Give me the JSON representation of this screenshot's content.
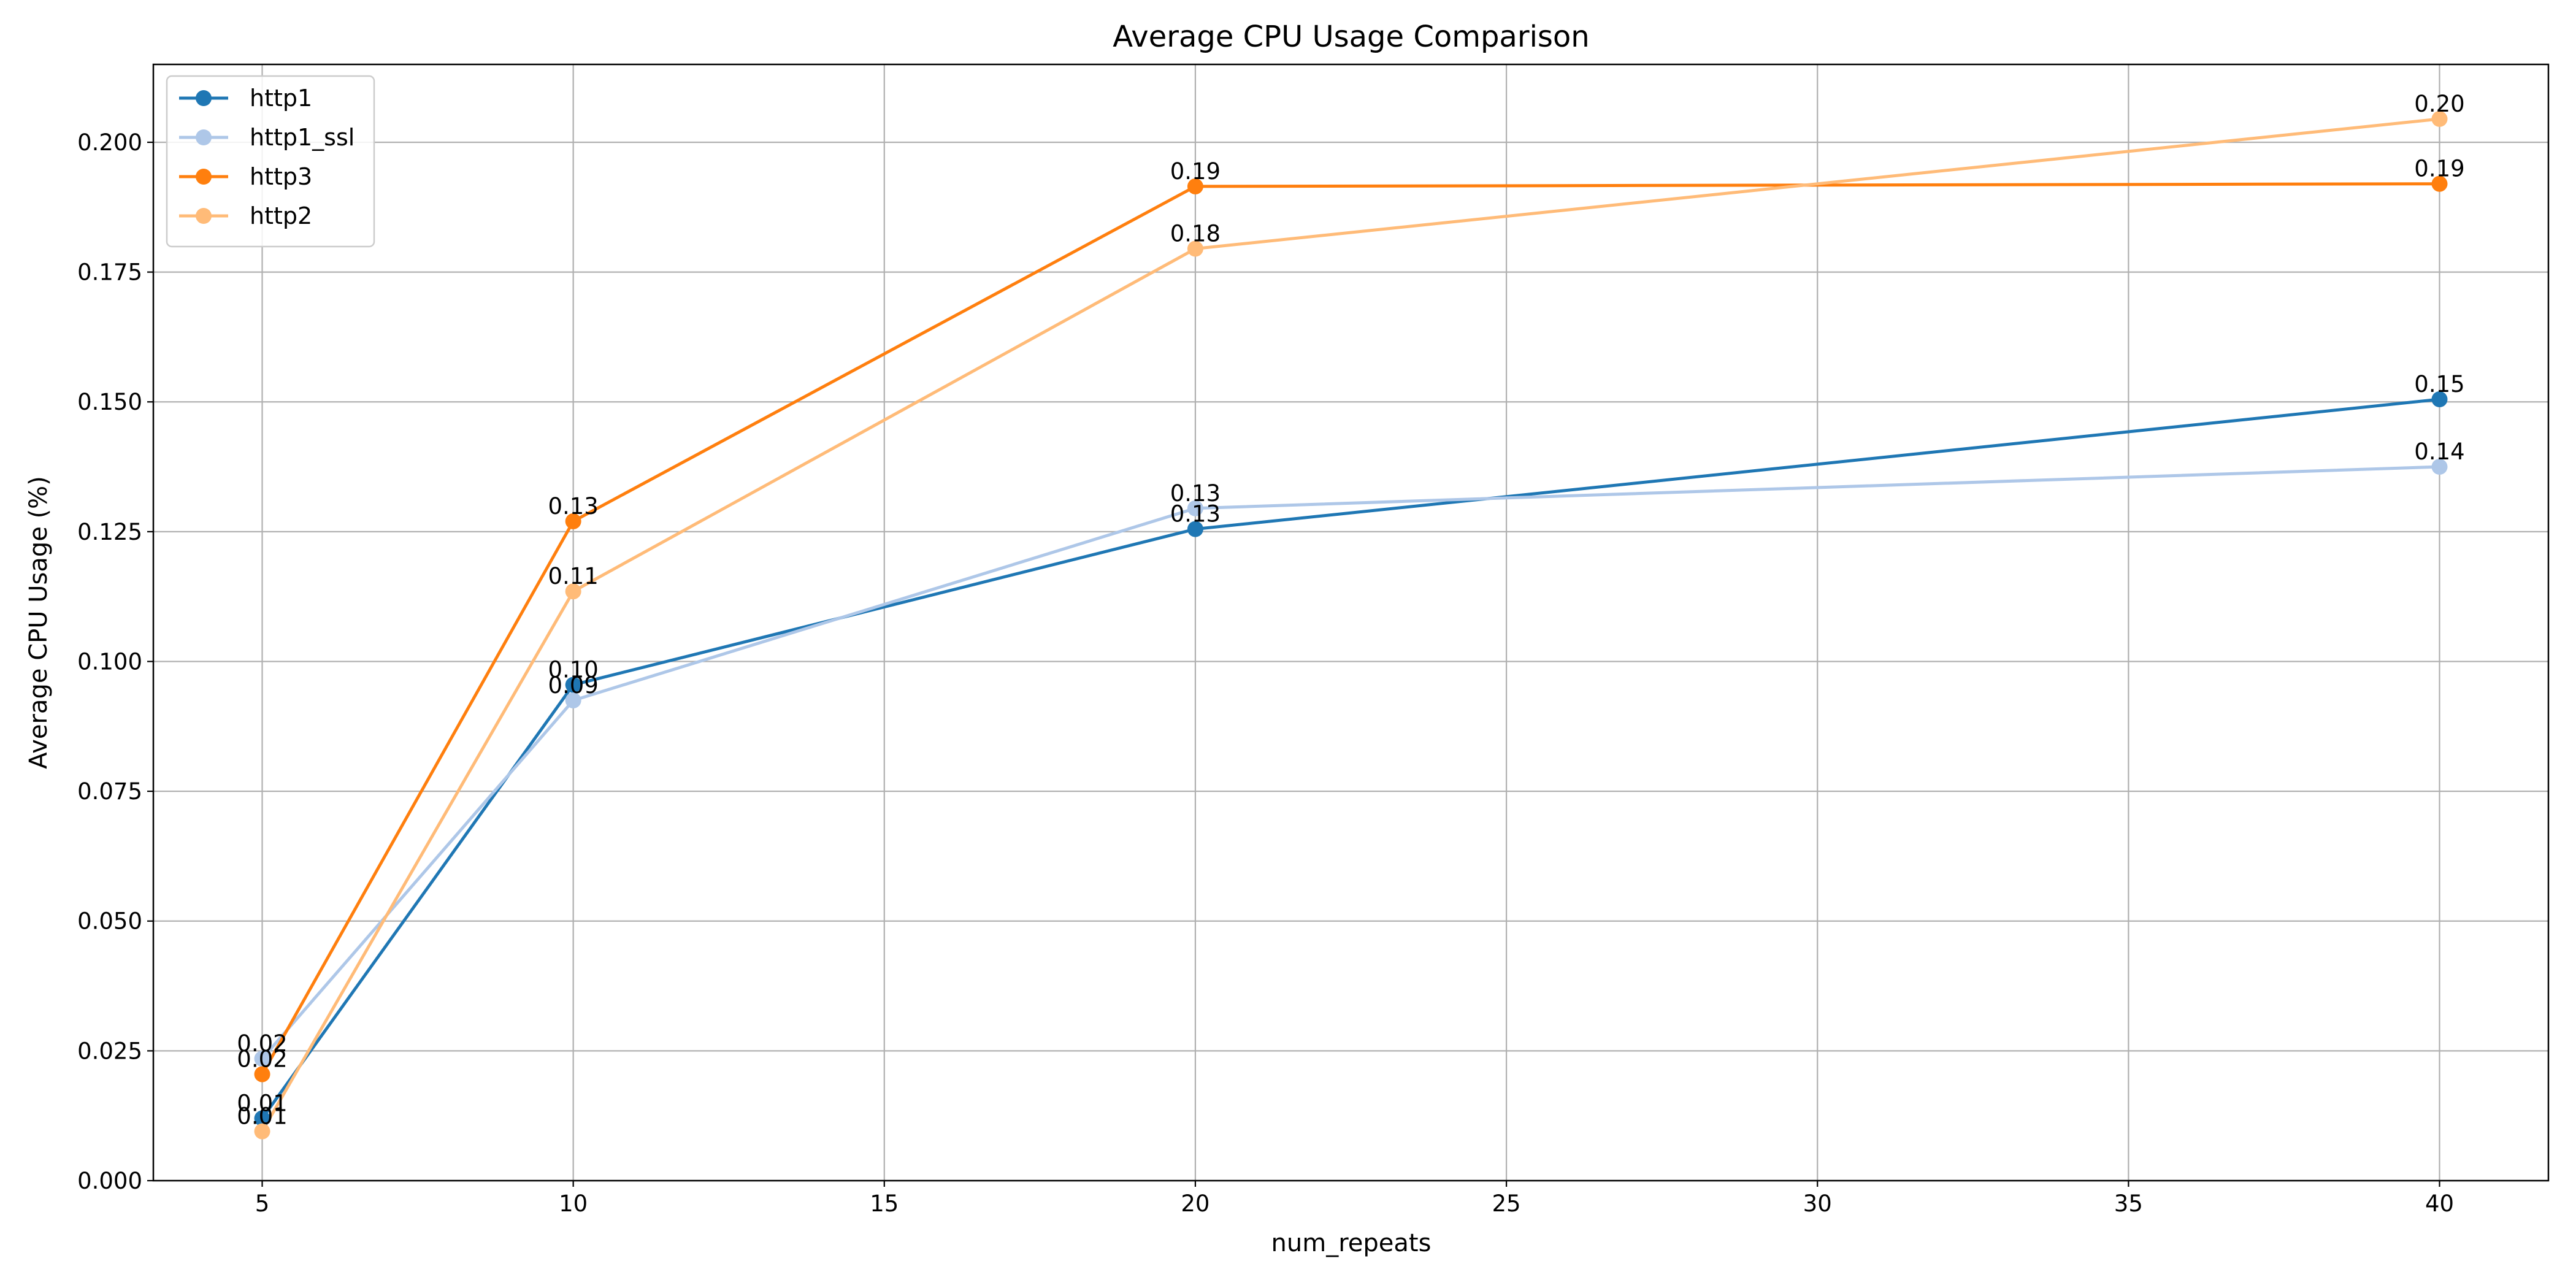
{
  "chart_data": {
    "type": "line",
    "title": "Average CPU Usage Comparison",
    "xlabel": "num_repeats",
    "ylabel": "Average CPU Usage (%)",
    "x": [
      5,
      10,
      20,
      40
    ],
    "xlim": [
      3.25,
      41.75
    ],
    "ylim": [
      0.0,
      0.215
    ],
    "xticks": [
      5,
      10,
      15,
      20,
      25,
      30,
      35,
      40
    ],
    "yticks": [
      0.0,
      0.025,
      0.05,
      0.075,
      0.1,
      0.125,
      0.15,
      0.175,
      0.2
    ],
    "ytick_labels": [
      "0.000",
      "0.025",
      "0.050",
      "0.075",
      "0.100",
      "0.125",
      "0.150",
      "0.175",
      "0.200"
    ],
    "grid": true,
    "legend_position": "top-left",
    "series": [
      {
        "name": "http1",
        "color": "#1f77b4",
        "values": [
          0.012,
          0.0955,
          0.1255,
          0.1505
        ],
        "labels": [
          "0.01",
          "0.10",
          "0.13",
          "0.15"
        ]
      },
      {
        "name": "http1_ssl",
        "color": "#aec7e8",
        "values": [
          0.0235,
          0.0925,
          0.1295,
          0.1375
        ],
        "labels": [
          "0.02",
          "0.09",
          "0.13",
          "0.14"
        ]
      },
      {
        "name": "http3",
        "color": "#ff7f0e",
        "values": [
          0.0205,
          0.127,
          0.1915,
          0.192
        ],
        "labels": [
          "0.02",
          "0.13",
          "0.19",
          "0.19"
        ]
      },
      {
        "name": "http2",
        "color": "#ffbb78",
        "values": [
          0.0095,
          0.1135,
          0.1795,
          0.2045
        ],
        "labels": [
          "0.01",
          "0.11",
          "0.18",
          "0.20"
        ]
      }
    ]
  }
}
